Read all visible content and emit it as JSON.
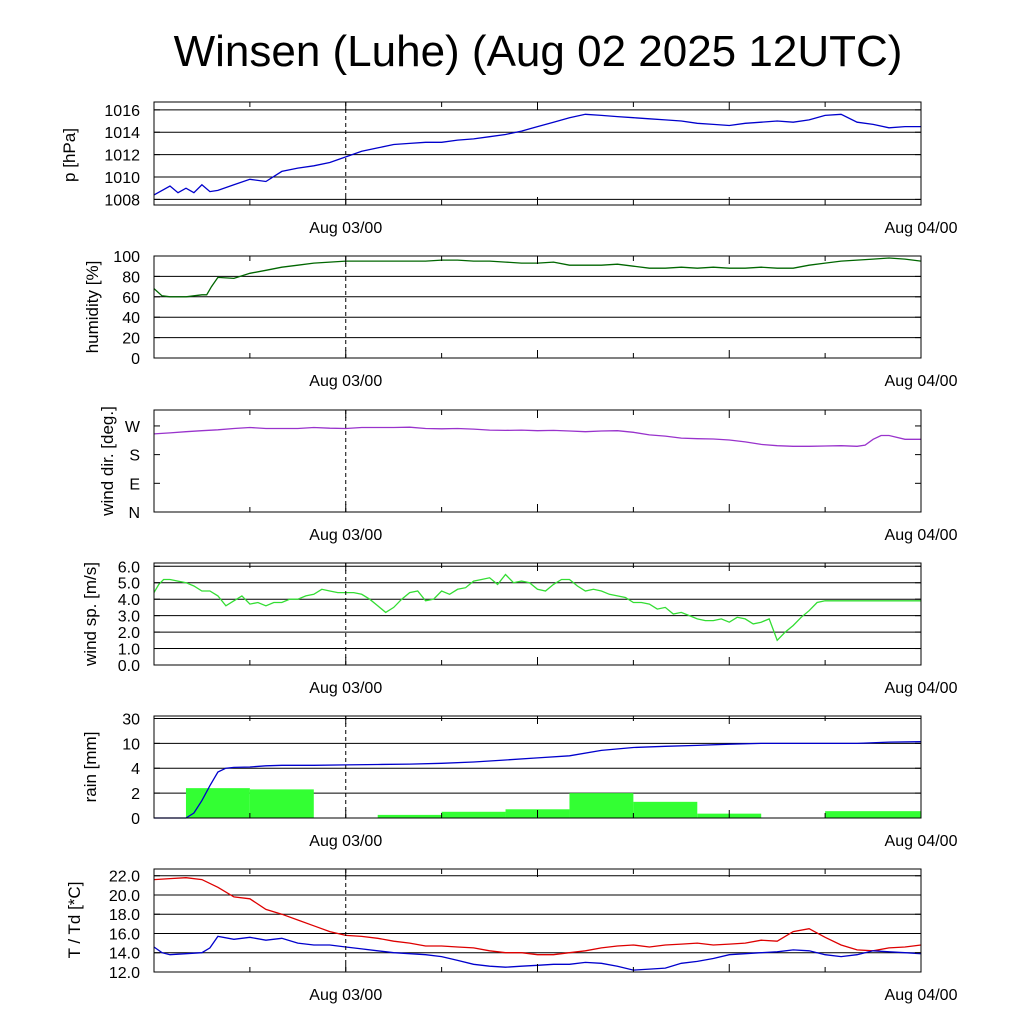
{
  "page_title": "Winsen (Luhe) (Aug 02 2025 12UTC)",
  "time_labels": [
    "Aug 03/00",
    "Aug 04/00"
  ],
  "chart_data": [
    {
      "type": "line",
      "id": "pressure",
      "ylabel": "p [hPa]",
      "ylim": [
        1007.5,
        1016.7
      ],
      "yticks": [
        1008,
        1010,
        1012,
        1014,
        1016
      ],
      "ytick_labels": [
        "1008",
        "1010",
        "1012",
        "1014",
        "1016"
      ],
      "grid": true,
      "series": [
        {
          "color": "#0000cc",
          "x": [
            0,
            1,
            1.5,
            2,
            2.5,
            3,
            3.5,
            4,
            5,
            6,
            7,
            8,
            9,
            10,
            11,
            12,
            13,
            14,
            15,
            16,
            17,
            18,
            19,
            20,
            21,
            22,
            23,
            24,
            25,
            26,
            27,
            28,
            29,
            30,
            31,
            32,
            33,
            34,
            35,
            36,
            37,
            38,
            39,
            40,
            41,
            42,
            43,
            44,
            45,
            46,
            47,
            48
          ],
          "y": [
            1008.4,
            1009.2,
            1008.6,
            1009.0,
            1008.6,
            1009.3,
            1008.7,
            1008.8,
            1009.3,
            1009.8,
            1009.6,
            1010.5,
            1010.8,
            1011.0,
            1011.3,
            1011.8,
            1012.3,
            1012.6,
            1012.9,
            1013.0,
            1013.1,
            1013.1,
            1013.3,
            1013.4,
            1013.6,
            1013.8,
            1014.1,
            1014.5,
            1014.9,
            1015.3,
            1015.6,
            1015.5,
            1015.4,
            1015.3,
            1015.2,
            1015.1,
            1015.0,
            1014.8,
            1014.7,
            1014.6,
            1014.8,
            1014.9,
            1015.0,
            1014.9,
            1015.1,
            1015.5,
            1015.6,
            1014.9,
            1014.7,
            1014.4,
            1014.5,
            1014.5
          ]
        }
      ]
    },
    {
      "type": "line",
      "id": "humidity",
      "ylabel": "humidity [%]",
      "ylim": [
        0,
        100
      ],
      "yticks": [
        0,
        20,
        40,
        60,
        80,
        100
      ],
      "ytick_labels": [
        "0",
        "20",
        "40",
        "60",
        "80",
        "100"
      ],
      "grid": true,
      "series": [
        {
          "color": "#006600",
          "x": [
            0,
            0.5,
            1,
            2,
            3,
            3.3,
            3.6,
            4,
            5,
            6,
            7,
            8,
            9,
            10,
            11,
            12,
            13,
            14,
            15,
            16,
            17,
            18,
            19,
            20,
            21,
            22,
            23,
            24,
            25,
            26,
            27,
            28,
            29,
            30,
            31,
            32,
            33,
            34,
            35,
            36,
            37,
            38,
            39,
            40,
            41,
            42,
            43,
            44,
            45,
            46,
            47,
            48
          ],
          "y": [
            68,
            61,
            60,
            60,
            62,
            62,
            70,
            79,
            78,
            83,
            86,
            89,
            91,
            93,
            94,
            95,
            95,
            95,
            95,
            95,
            95,
            96,
            96,
            95,
            95,
            94,
            93,
            93,
            94,
            91,
            91,
            91,
            92,
            90,
            88,
            88,
            89,
            88,
            89,
            88,
            88,
            89,
            88,
            88,
            91,
            93,
            95,
            96,
            97,
            98,
            97,
            95
          ]
        }
      ]
    },
    {
      "type": "line",
      "id": "wind_direction",
      "ylabel": "wind dir. [deg.]",
      "ylim": [
        0,
        320
      ],
      "yticks": [
        0,
        90,
        180,
        270
      ],
      "ytick_labels": [
        "N",
        "E",
        "S",
        "W"
      ],
      "grid": false,
      "series": [
        {
          "color": "#9933cc",
          "x": [
            0,
            1,
            2,
            3,
            4,
            5,
            6,
            7,
            8,
            9,
            10,
            11,
            12,
            13,
            14,
            15,
            16,
            17,
            18,
            19,
            20,
            21,
            22,
            23,
            24,
            25,
            26,
            27,
            28,
            29,
            30,
            31,
            32,
            33,
            34,
            35,
            36,
            37,
            38,
            39,
            40,
            41,
            42,
            43,
            44,
            44.5,
            45,
            45.5,
            46,
            47,
            48
          ],
          "y": [
            245,
            248,
            252,
            255,
            258,
            262,
            265,
            262,
            262,
            262,
            265,
            263,
            262,
            265,
            265,
            265,
            266,
            262,
            261,
            262,
            260,
            257,
            256,
            257,
            255,
            256,
            254,
            252,
            254,
            255,
            250,
            242,
            238,
            232,
            230,
            229,
            226,
            220,
            212,
            208,
            206,
            206,
            207,
            208,
            206,
            210,
            228,
            240,
            240,
            228,
            228
          ]
        }
      ]
    },
    {
      "type": "line",
      "id": "wind_speed",
      "ylabel": "wind sp. [m/s]",
      "ylim": [
        0,
        6.2
      ],
      "yticks": [
        0,
        1,
        2,
        3,
        4,
        5,
        6
      ],
      "ytick_labels": [
        "0.0",
        "1.0",
        "2.0",
        "3.0",
        "4.0",
        "5.0",
        "6.0"
      ],
      "grid": true,
      "series": [
        {
          "color": "#33dd33",
          "x": [
            0,
            0.3,
            0.6,
            1,
            1.5,
            2,
            2.5,
            3,
            3.5,
            4,
            4.5,
            5,
            5.5,
            6,
            6.5,
            7,
            7.5,
            8,
            8.5,
            9,
            9.5,
            10,
            10.5,
            11,
            11.5,
            12,
            12.5,
            13,
            13.5,
            14,
            14.5,
            15,
            15.5,
            16,
            16.5,
            17,
            17.5,
            18,
            18.5,
            19,
            19.5,
            20,
            20.5,
            21,
            21.5,
            22,
            22.5,
            23,
            23.5,
            24,
            24.5,
            25,
            25.5,
            26,
            26.5,
            27,
            27.5,
            28,
            28.5,
            29,
            29.5,
            30,
            30.5,
            31,
            31.5,
            32,
            32.5,
            33,
            33.5,
            34,
            34.5,
            35,
            35.5,
            36,
            36.5,
            37,
            37.5,
            38,
            38.5,
            39,
            39.5,
            40,
            40.5,
            41,
            41.5,
            42,
            42.5,
            43,
            43.5,
            44,
            44.5,
            45,
            45.5,
            46,
            46.5,
            47,
            47.5,
            48
          ],
          "y": [
            4.4,
            4.9,
            5.2,
            5.2,
            5.1,
            5.0,
            4.8,
            4.5,
            4.5,
            4.2,
            3.6,
            3.9,
            4.2,
            3.7,
            3.8,
            3.6,
            3.8,
            3.8,
            4.0,
            4.0,
            4.2,
            4.3,
            4.6,
            4.5,
            4.4,
            4.4,
            4.4,
            4.3,
            4.0,
            3.6,
            3.2,
            3.5,
            4.0,
            4.4,
            4.5,
            3.9,
            4.0,
            4.5,
            4.3,
            4.6,
            4.7,
            5.1,
            5.2,
            5.3,
            4.9,
            5.5,
            5.0,
            5.1,
            5.0,
            4.6,
            4.5,
            4.9,
            5.2,
            5.2,
            4.8,
            4.5,
            4.6,
            4.5,
            4.3,
            4.2,
            4.1,
            3.8,
            3.8,
            3.7,
            3.4,
            3.5,
            3.1,
            3.2,
            3.0,
            2.8,
            2.7,
            2.7,
            2.8,
            2.6,
            2.9,
            2.8,
            2.5,
            2.6,
            2.8,
            1.5,
            2.0,
            2.4,
            2.9,
            3.3,
            3.8,
            3.9,
            3.9,
            3.9,
            3.9,
            3.9,
            3.9,
            3.9,
            3.9,
            3.9,
            3.9,
            3.9,
            3.9,
            3.9
          ]
        }
      ]
    },
    {
      "type": "bar",
      "id": "rain",
      "ylabel": "rain [mm]",
      "ylim": [
        0,
        30
      ],
      "scale": "nonlinear",
      "yticks": [
        0,
        2,
        4,
        10,
        30
      ],
      "ytick_labels": [
        "0",
        "2",
        "4",
        "10",
        "30"
      ],
      "grid": true,
      "bars": {
        "color": "#33ff33",
        "x_start": [
          2,
          6,
          10,
          14,
          18,
          22,
          26,
          30,
          34,
          38,
          42
        ],
        "x_end": [
          6,
          10,
          14,
          18,
          22,
          26,
          30,
          34,
          38,
          42,
          48
        ],
        "values": [
          2.4,
          2.3,
          0,
          0.25,
          0.5,
          0.7,
          2.0,
          1.3,
          0.35,
          0,
          0.55
        ]
      },
      "series": [
        {
          "color": "#0000cc",
          "name": "",
          "x": [
            0,
            1,
            2,
            2.5,
            3,
            3.5,
            4,
            4.5,
            5,
            6,
            7,
            8,
            9,
            10,
            12,
            14,
            16,
            18,
            20,
            22,
            24,
            26,
            28,
            30,
            32,
            34,
            36,
            38,
            40,
            42,
            44,
            46,
            48
          ],
          "y": [
            0,
            0,
            0,
            0.4,
            1.4,
            2.6,
            3.7,
            4.0,
            4.2,
            4.3,
            4.6,
            4.7,
            4.7,
            4.7,
            4.8,
            4.9,
            5.0,
            5.2,
            5.5,
            6.0,
            6.5,
            7.0,
            8.3,
            9.0,
            9.3,
            9.5,
            9.8,
            10.0,
            10.0,
            10.0,
            10.0,
            11.0,
            11.3
          ]
        }
      ]
    },
    {
      "type": "line",
      "id": "temperature",
      "ylabel": "T / Td [*C]",
      "ylim": [
        12,
        22.7
      ],
      "yticks": [
        12,
        14,
        16,
        18,
        20,
        22
      ],
      "ytick_labels": [
        "12.0",
        "14.0",
        "16.0",
        "18.0",
        "20.0",
        "22.0"
      ],
      "grid": true,
      "series": [
        {
          "color": "#dd0000",
          "x": [
            0,
            1,
            2,
            3,
            4,
            5,
            6,
            7,
            8,
            9,
            10,
            11,
            12,
            13,
            14,
            15,
            16,
            17,
            18,
            19,
            20,
            21,
            22,
            23,
            24,
            25,
            26,
            27,
            28,
            29,
            30,
            31,
            32,
            33,
            34,
            35,
            36,
            37,
            38,
            39,
            40,
            41,
            42,
            43,
            44,
            45,
            46,
            47,
            48
          ],
          "y": [
            21.6,
            21.7,
            21.8,
            21.6,
            20.8,
            19.8,
            19.6,
            18.5,
            18.0,
            17.4,
            16.8,
            16.2,
            15.8,
            15.7,
            15.5,
            15.2,
            15.0,
            14.7,
            14.7,
            14.6,
            14.5,
            14.2,
            14.0,
            14.0,
            13.8,
            13.8,
            14.0,
            14.2,
            14.5,
            14.7,
            14.8,
            14.6,
            14.8,
            14.9,
            15.0,
            14.8,
            14.9,
            15.0,
            15.3,
            15.2,
            16.2,
            16.5,
            15.6,
            14.8,
            14.3,
            14.2,
            14.5,
            14.6,
            14.8
          ]
        },
        {
          "color": "#0000cc",
          "x": [
            0,
            0.5,
            1,
            2,
            3,
            3.5,
            4,
            5,
            6,
            7,
            8,
            9,
            10,
            11,
            12,
            13,
            14,
            15,
            16,
            17,
            18,
            19,
            20,
            21,
            22,
            23,
            24,
            25,
            26,
            27,
            28,
            29,
            30,
            31,
            32,
            33,
            34,
            35,
            36,
            37,
            38,
            39,
            40,
            41,
            42,
            43,
            44,
            45,
            46,
            47,
            48
          ],
          "y": [
            14.6,
            14.0,
            13.8,
            13.9,
            14.0,
            14.5,
            15.7,
            15.4,
            15.6,
            15.3,
            15.5,
            15.0,
            14.8,
            14.8,
            14.6,
            14.4,
            14.2,
            14.0,
            13.9,
            13.8,
            13.6,
            13.2,
            12.8,
            12.6,
            12.5,
            12.6,
            12.7,
            12.8,
            12.8,
            13.0,
            12.9,
            12.6,
            12.2,
            12.3,
            12.4,
            12.9,
            13.1,
            13.4,
            13.8,
            13.9,
            14.0,
            14.1,
            14.3,
            14.2,
            13.8,
            13.6,
            13.8,
            14.2,
            14.1,
            14.0,
            13.9
          ]
        }
      ]
    }
  ]
}
